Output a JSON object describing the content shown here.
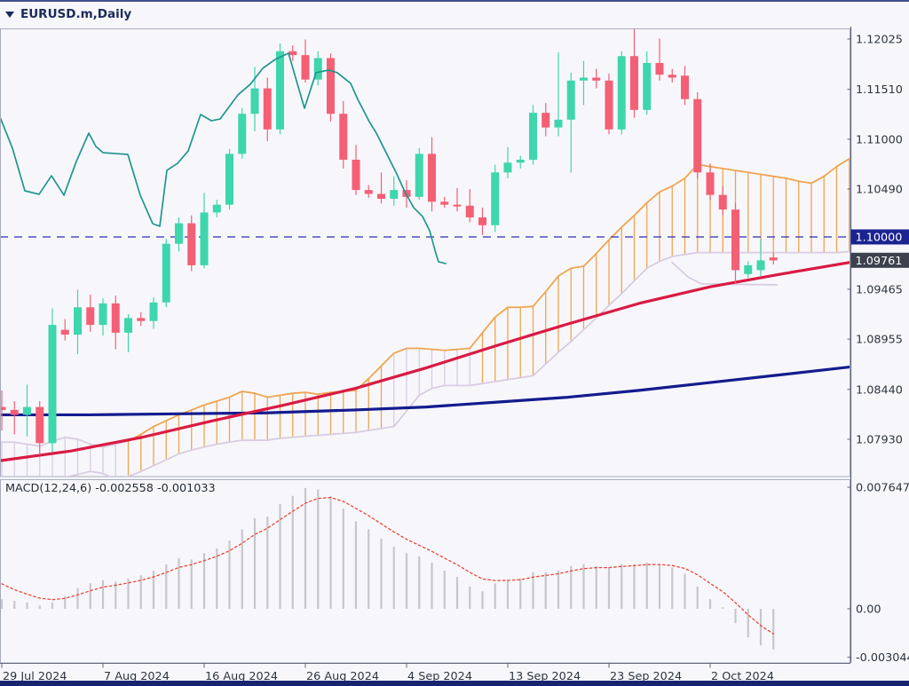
{
  "window": {
    "title": "EURUSD.m,Daily"
  },
  "price_axis": {
    "labels": [
      "1.12025",
      "1.11510",
      "1.11000",
      "1.10490",
      "1.09465",
      "1.08955",
      "1.08440",
      "1.07930"
    ],
    "level_box": "1.10000",
    "current_price_box": "1.09761"
  },
  "time_axis": {
    "ticks": [
      {
        "label": "29 Jul 2024",
        "index": 0
      },
      {
        "label": "7 Aug 2024",
        "index": 8
      },
      {
        "label": "16 Aug 2024",
        "index": 16
      },
      {
        "label": "26 Aug 2024",
        "index": 24
      },
      {
        "label": "4 Sep 2024",
        "index": 32
      },
      {
        "label": "13 Sep 2024",
        "index": 40
      },
      {
        "label": "23 Sep 2024",
        "index": 48
      },
      {
        "label": "2 Oct 2024",
        "index": 56
      }
    ]
  },
  "colors": {
    "bull": "#3ed6ac",
    "bear": "#f45f75",
    "chikou": "#1f968e",
    "cloud_orange": "#efa44f",
    "cloud_lavender": "#d9cbe2",
    "ma_red": "#da1a43",
    "ma_navy": "#141b8e",
    "dashed_level": "#2e2eae",
    "macd_bar": "#c6c6cb",
    "macd_signal": "#ee4438",
    "level_box_bg": "#1b2391",
    "price_box_bg": "#3c414d",
    "axis_text": "#2e3440",
    "pane_border": "#a7abc0",
    "axis_line": "#62667c"
  },
  "chart_data": {
    "type": "candlestick+macd",
    "title": "EURUSD.m,Daily",
    "dashed_level": 1.1,
    "candles": [
      [
        "2024-07-29",
        1.0826,
        1.0843,
        1.0802,
        1.0823
      ],
      [
        "2024-07-30",
        1.0823,
        1.0832,
        1.0798,
        1.0818
      ],
      [
        "2024-07-31",
        1.0818,
        1.0849,
        1.0796,
        1.0826
      ],
      [
        "2024-08-01",
        1.0826,
        1.0832,
        1.0777,
        1.0789
      ],
      [
        "2024-08-02",
        1.0789,
        1.0927,
        1.078,
        1.091
      ],
      [
        "2024-08-04",
        1.0905,
        1.0916,
        1.0894,
        1.09
      ],
      [
        "2024-08-05",
        1.09,
        1.0946,
        1.088,
        1.0928
      ],
      [
        "2024-08-06",
        1.0928,
        1.0941,
        1.0903,
        1.091
      ],
      [
        "2024-08-07",
        1.091,
        1.0937,
        1.0899,
        1.0932
      ],
      [
        "2024-08-08",
        1.0932,
        1.094,
        1.0885,
        1.0902
      ],
      [
        "2024-08-09",
        1.0902,
        1.0921,
        1.0882,
        1.0917
      ],
      [
        "2024-08-11",
        1.0917,
        1.0923,
        1.0909,
        1.0914
      ],
      [
        "2024-08-12",
        1.0914,
        1.0938,
        1.0906,
        1.0933
      ],
      [
        "2024-08-13",
        1.0933,
        1.0998,
        1.0928,
        1.0993
      ],
      [
        "2024-08-14",
        1.0993,
        1.102,
        1.0985,
        1.1014
      ],
      [
        "2024-08-15",
        1.1014,
        1.1022,
        1.0965,
        1.0971
      ],
      [
        "2024-08-16",
        1.0971,
        1.1045,
        1.0968,
        1.1025
      ],
      [
        "2024-08-18",
        1.1025,
        1.1038,
        1.102,
        1.1033
      ],
      [
        "2024-08-19",
        1.1033,
        1.109,
        1.1028,
        1.1085
      ],
      [
        "2024-08-20",
        1.1085,
        1.1132,
        1.108,
        1.1126
      ],
      [
        "2024-08-21",
        1.1126,
        1.1174,
        1.1108,
        1.1152
      ],
      [
        "2024-08-22",
        1.1152,
        1.1163,
        1.1098,
        1.111
      ],
      [
        "2024-08-23",
        1.111,
        1.1198,
        1.1105,
        1.119
      ],
      [
        "2024-08-25",
        1.119,
        1.1196,
        1.118,
        1.1186
      ],
      [
        "2024-08-26",
        1.1186,
        1.1202,
        1.1158,
        1.1161
      ],
      [
        "2024-08-27",
        1.1161,
        1.119,
        1.1155,
        1.1183
      ],
      [
        "2024-08-28",
        1.1183,
        1.1188,
        1.1118,
        1.1126
      ],
      [
        "2024-08-29",
        1.1126,
        1.1139,
        1.107,
        1.1079
      ],
      [
        "2024-08-30",
        1.1079,
        1.1094,
        1.1043,
        1.1048
      ],
      [
        "2024-09-01",
        1.1048,
        1.1053,
        1.104,
        1.1044
      ],
      [
        "2024-09-02",
        1.1044,
        1.1066,
        1.1034,
        1.1039
      ],
      [
        "2024-09-03",
        1.1039,
        1.1062,
        1.1032,
        1.1048
      ],
      [
        "2024-09-04",
        1.1048,
        1.1058,
        1.103,
        1.1041
      ],
      [
        "2024-09-05",
        1.1041,
        1.1091,
        1.1038,
        1.1085
      ],
      [
        "2024-09-06",
        1.1085,
        1.1102,
        1.1026,
        1.1036
      ],
      [
        "2024-09-08",
        1.1036,
        1.1041,
        1.103,
        1.1033
      ],
      [
        "2024-09-09",
        1.1033,
        1.105,
        1.1026,
        1.1032
      ],
      [
        "2024-09-10",
        1.1032,
        1.1049,
        1.1015,
        1.102
      ],
      [
        "2024-09-11",
        1.102,
        1.103,
        1.1002,
        1.1012
      ],
      [
        "2024-09-12",
        1.1012,
        1.1074,
        1.1005,
        1.1066
      ],
      [
        "2024-09-13",
        1.1066,
        1.1092,
        1.106,
        1.1076
      ],
      [
        "2024-09-15",
        1.1076,
        1.1083,
        1.107,
        1.1079
      ],
      [
        "2024-09-16",
        1.1079,
        1.1135,
        1.1074,
        1.1127
      ],
      [
        "2024-09-17",
        1.1127,
        1.1137,
        1.1103,
        1.1112
      ],
      [
        "2024-09-18",
        1.1112,
        1.1189,
        1.1103,
        1.112
      ],
      [
        "2024-09-19",
        1.112,
        1.1168,
        1.1066,
        1.116
      ],
      [
        "2024-09-20",
        1.116,
        1.118,
        1.1135,
        1.1163
      ],
      [
        "2024-09-22",
        1.1163,
        1.1172,
        1.1152,
        1.116
      ],
      [
        "2024-09-23",
        1.116,
        1.1167,
        1.1105,
        1.111
      ],
      [
        "2024-09-24",
        1.111,
        1.119,
        1.1105,
        1.1185
      ],
      [
        "2024-09-25",
        1.1185,
        1.1214,
        1.1122,
        1.113
      ],
      [
        "2024-09-26",
        1.113,
        1.119,
        1.1125,
        1.1178
      ],
      [
        "2024-09-27",
        1.1178,
        1.1203,
        1.116,
        1.1166
      ],
      [
        "2024-09-29",
        1.1166,
        1.1172,
        1.1158,
        1.1163
      ],
      [
        "2024-09-30",
        1.1165,
        1.1175,
        1.1135,
        1.1141
      ],
      [
        "2024-10-01",
        1.1141,
        1.1148,
        1.106,
        1.1066
      ],
      [
        "2024-10-02",
        1.1066,
        1.1075,
        1.1038,
        1.1043
      ],
      [
        "2024-10-03",
        1.1043,
        1.1052,
        1.1022,
        1.1028
      ],
      [
        "2024-10-04",
        1.1028,
        1.1035,
        1.0952,
        1.0966
      ],
      [
        "2024-10-06",
        1.0962,
        1.0975,
        1.0958,
        1.0971
      ],
      [
        "2024-10-07",
        1.0966,
        1.0998,
        1.096,
        1.0976
      ],
      [
        "2024-10-08",
        1.0979,
        1.0984,
        1.0972,
        1.0976
      ]
    ],
    "ichimoku": {
      "span_a": [
        1.079,
        1.079,
        1.0788,
        1.0786,
        1.0791,
        1.0795,
        1.0793,
        1.0788,
        1.0785,
        1.0788,
        1.0791,
        1.0798,
        1.0806,
        1.0812,
        1.0818,
        1.0823,
        1.0828,
        1.0832,
        1.0836,
        1.0842,
        1.084,
        1.0836,
        1.0838,
        1.084,
        1.0841,
        1.0839,
        1.0841,
        1.0842,
        1.0843,
        1.0855,
        1.0868,
        1.0881,
        1.0886,
        1.0886,
        1.0885,
        1.0884,
        1.0885,
        1.0886,
        1.0902,
        1.0918,
        1.0928,
        1.0928,
        1.0929,
        1.0944,
        1.096,
        1.0968,
        1.097,
        1.0983,
        1.0997,
        1.101,
        1.1022,
        1.1035,
        1.1046,
        1.1052,
        1.106,
        1.1074,
        1.1072,
        1.107,
        1.1068,
        1.1066,
        1.1064,
        1.1062,
        1.106,
        1.1057,
        1.1055,
        1.1062,
        1.1072,
        1.108
      ],
      "span_b": [
        1.0748,
        1.0748,
        1.0748,
        1.0749,
        1.075,
        1.0754,
        1.0757,
        1.076,
        1.0758,
        1.0752,
        1.0755,
        1.076,
        1.0766,
        1.0772,
        1.0778,
        1.0782,
        1.0785,
        1.0788,
        1.079,
        1.0792,
        1.0792,
        1.0792,
        1.0794,
        1.0795,
        1.0796,
        1.0797,
        1.0798,
        1.0799,
        1.08,
        1.0802,
        1.0804,
        1.0806,
        1.0822,
        1.0838,
        1.0845,
        1.0848,
        1.0848,
        1.0848,
        1.085,
        1.0852,
        1.0854,
        1.0856,
        1.0858,
        1.087,
        1.0882,
        1.0893,
        1.0905,
        1.0917,
        1.093,
        1.0942,
        1.0955,
        1.0968,
        1.0975,
        1.098,
        1.0982,
        1.0984,
        1.0984,
        1.0984,
        1.0984,
        1.0984,
        1.0984,
        1.0984,
        1.0984,
        1.0984,
        1.0984,
        1.0984,
        1.0984,
        1.0985
      ],
      "lavender_hatch_ranges": [
        [
          0,
          9
        ],
        [
          31,
          37
        ]
      ],
      "border_flip_index": 10,
      "kijun_segment": [
        [
          757,
          1.0974
        ],
        [
          775,
          1.0959
        ],
        [
          790,
          1.0952
        ],
        [
          875,
          1.0951
        ]
      ]
    },
    "chikou_points": [
      [
        0,
        1.11226
      ],
      [
        14,
        1.10908
      ],
      [
        28,
        1.10472
      ],
      [
        44,
        1.10436
      ],
      [
        58,
        1.10626
      ],
      [
        72,
        1.10427
      ],
      [
        86,
        1.10772
      ],
      [
        100,
        1.11062
      ],
      [
        108,
        1.10926
      ],
      [
        116,
        1.10862
      ],
      [
        144,
        1.10844
      ],
      [
        158,
        1.10427
      ],
      [
        172,
        1.10136
      ],
      [
        180,
        1.10109
      ],
      [
        188,
        1.10681
      ],
      [
        200,
        1.10753
      ],
      [
        212,
        1.1088
      ],
      [
        226,
        1.11253
      ],
      [
        238,
        1.11189
      ],
      [
        248,
        1.11207
      ],
      [
        268,
        1.11453
      ],
      [
        282,
        1.11562
      ],
      [
        296,
        1.11725
      ],
      [
        310,
        1.11816
      ],
      [
        325,
        1.11879
      ],
      [
        343,
        1.11316
      ],
      [
        356,
        1.1168
      ],
      [
        370,
        1.11707
      ],
      [
        380,
        1.1168
      ],
      [
        395,
        1.11571
      ],
      [
        403,
        1.11408
      ],
      [
        416,
        1.1118
      ],
      [
        424,
        1.11062
      ],
      [
        434,
        1.1088
      ],
      [
        446,
        1.10663
      ],
      [
        456,
        1.10463
      ],
      [
        466,
        1.103
      ],
      [
        476,
        1.10209
      ],
      [
        484,
        1.10064
      ],
      [
        490,
        1.09864
      ],
      [
        494,
        1.09746
      ],
      [
        502,
        1.09728
      ]
    ],
    "ma_red_points": [
      [
        0,
        1.0771
      ],
      [
        80,
        1.0781
      ],
      [
        160,
        1.0795
      ],
      [
        240,
        1.0812
      ],
      [
        320,
        1.0828
      ],
      [
        400,
        1.0845
      ],
      [
        480,
        1.0866
      ],
      [
        560,
        1.0889
      ],
      [
        640,
        1.0911
      ],
      [
        720,
        1.0932
      ],
      [
        800,
        1.0949
      ],
      [
        880,
        1.0962
      ],
      [
        958,
        1.0974
      ]
    ],
    "ma_navy_points": [
      [
        0,
        1.0818
      ],
      [
        100,
        1.0818
      ],
      [
        200,
        1.0819
      ],
      [
        300,
        1.082
      ],
      [
        400,
        1.0823
      ],
      [
        480,
        1.0826
      ],
      [
        560,
        1.0831
      ],
      [
        640,
        1.0836
      ],
      [
        720,
        1.0843
      ],
      [
        800,
        1.0851
      ],
      [
        880,
        1.0859
      ],
      [
        958,
        1.0867
      ]
    ],
    "macd": {
      "label": "MACD(12,24,6) -0.002558 -0.001033",
      "params": "12,24,6",
      "value_main": "-0.002558",
      "value_signal": "-0.001033",
      "axis_labels": [
        {
          "text": "0.007647",
          "value": 0.007647
        },
        {
          "text": "0.00",
          "value": 0.0
        },
        {
          "text": "-0.003044",
          "value": -0.003044
        }
      ],
      "histogram": [
        0.0006,
        0.0005,
        0.0004,
        0.0002,
        0.0004,
        0.0008,
        0.0013,
        0.0016,
        0.0018,
        0.0017,
        0.0019,
        0.0021,
        0.0024,
        0.0028,
        0.0032,
        0.0031,
        0.0035,
        0.0038,
        0.0043,
        0.005,
        0.0057,
        0.0058,
        0.0066,
        0.0071,
        0.0076,
        0.0075,
        0.0071,
        0.0063,
        0.0055,
        0.005,
        0.0044,
        0.0039,
        0.0035,
        0.0033,
        0.0029,
        0.0024,
        0.002,
        0.0014,
        0.0011,
        0.0016,
        0.0018,
        0.0019,
        0.0023,
        0.0023,
        0.0024,
        0.0027,
        0.0028,
        0.0027,
        0.0026,
        0.0028,
        0.0028,
        0.0029,
        0.0028,
        0.0026,
        0.0022,
        0.0014,
        0.0006,
        0.0001,
        -0.0009,
        -0.0018,
        -0.0023,
        -0.00256
      ],
      "signal_start": 0.0021,
      "signal_smoothing": 0.35
    }
  }
}
